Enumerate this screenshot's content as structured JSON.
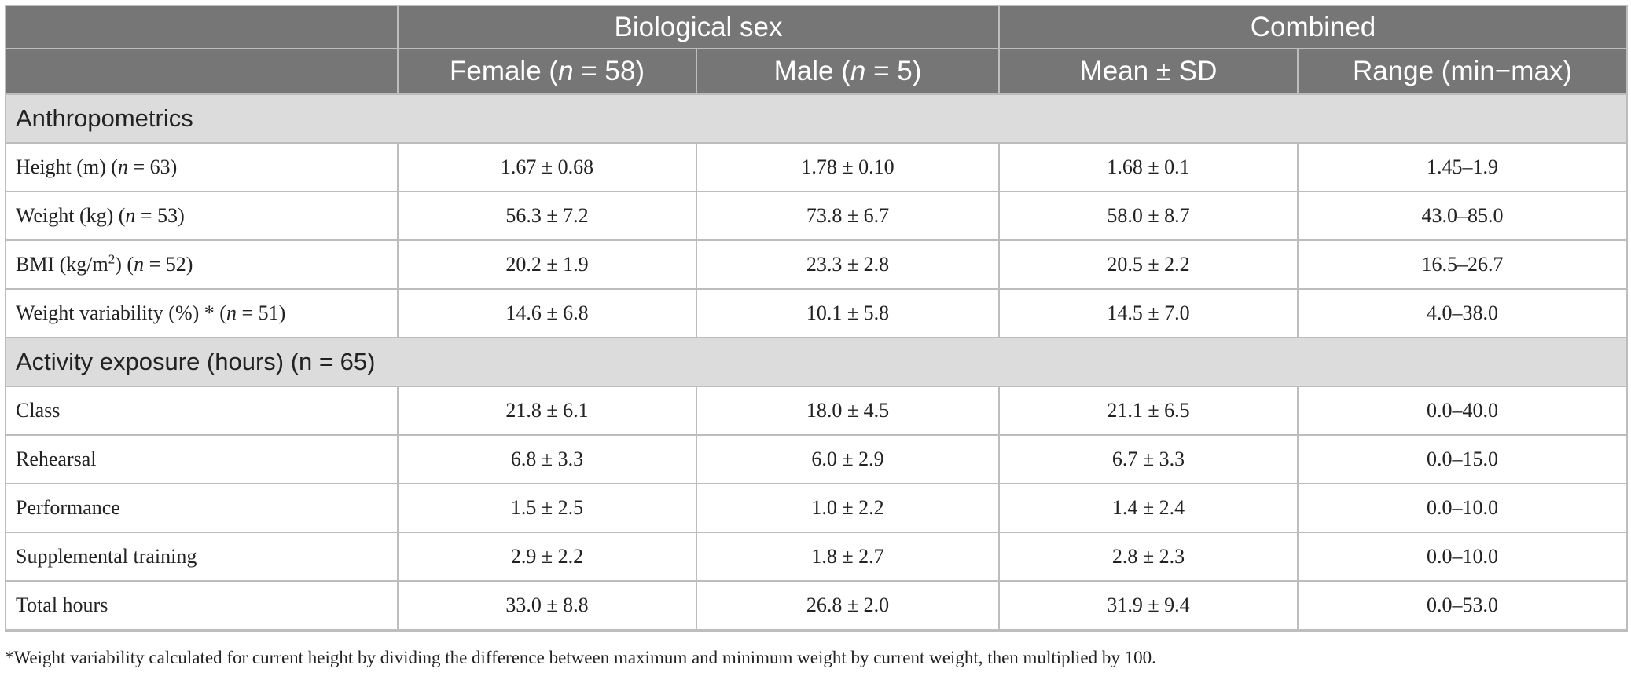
{
  "header": {
    "group_biological_sex": "Biological sex",
    "group_combined": "Combined",
    "col_female_prefix": "Female (",
    "col_female_n": "n",
    "col_female_suffix": " = 58)",
    "col_male_prefix": "Male (",
    "col_male_n": "n",
    "col_male_suffix": " = 5)",
    "col_mean_sd": "Mean ± SD",
    "col_range": "Range (min−max)"
  },
  "sections": {
    "anthropometrics": "Anthropometrics",
    "activity": "Activity exposure (hours) (n = 65)"
  },
  "rows": {
    "height": {
      "label": "Height (m) (",
      "n": "n",
      "n_suffix": " = 63)",
      "female": "1.67 ± 0.68",
      "male": "1.78 ± 0.10",
      "mean": "1.68 ± 0.1",
      "range": "1.45–1.9"
    },
    "weight": {
      "label": "Weight (kg) (",
      "n": "n",
      "n_suffix": " = 53)",
      "female": "56.3 ± 7.2",
      "male": "73.8 ± 6.7",
      "mean": "58.0 ± 8.7",
      "range": "43.0–85.0"
    },
    "bmi": {
      "label": "BMI (kg/m",
      "sup": "2",
      "label_mid": ") (",
      "n": "n",
      "n_suffix": " = 52)",
      "female": "20.2 ± 1.9",
      "male": "23.3 ± 2.8",
      "mean": "20.5 ± 2.2",
      "range": "16.5–26.7"
    },
    "weight_var": {
      "label": "Weight variability (%) * (",
      "n": "n",
      "n_suffix": " = 51)",
      "female": "14.6 ± 6.8",
      "male": "10.1 ± 5.8",
      "mean": "14.5 ± 7.0",
      "range": "4.0–38.0"
    },
    "class": {
      "label": "Class",
      "female": "21.8 ± 6.1",
      "male": "18.0 ± 4.5",
      "mean": "21.1 ± 6.5",
      "range": "0.0–40.0"
    },
    "rehearsal": {
      "label": "Rehearsal",
      "female": "6.8 ± 3.3",
      "male": "6.0 ± 2.9",
      "mean": "6.7 ± 3.3",
      "range": "0.0–15.0"
    },
    "performance": {
      "label": "Performance",
      "female": "1.5 ± 2.5",
      "male": "1.0 ± 2.2",
      "mean": "1.4 ± 2.4",
      "range": "0.0–10.0"
    },
    "supplemental": {
      "label": "Supplemental training",
      "female": "2.9 ± 2.2",
      "male": "1.8 ± 2.7",
      "mean": "2.8 ± 2.3",
      "range": "0.0–10.0"
    },
    "total": {
      "label": "Total hours",
      "female": "33.0 ± 8.8",
      "male": "26.8 ± 2.0",
      "mean": "31.9 ± 9.4",
      "range": "0.0–53.0"
    }
  },
  "footnote": "*Weight variability calculated for current height by dividing the difference between maximum and minimum weight by current weight, then multiplied by 100."
}
